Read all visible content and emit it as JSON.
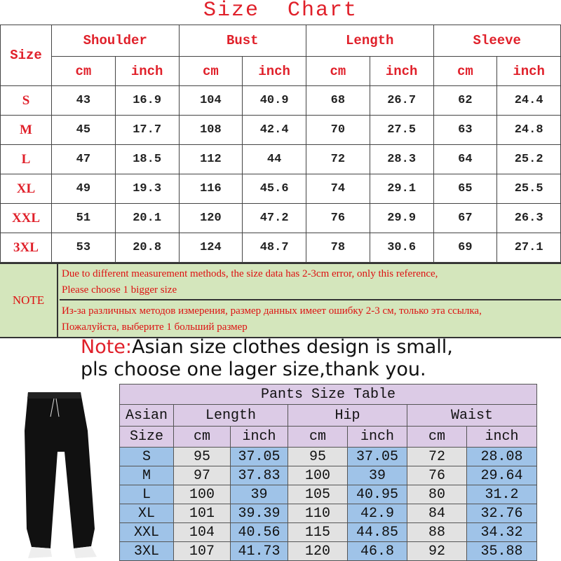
{
  "title": "Size  Chart",
  "top_table": {
    "size_label": "Size",
    "groups": [
      "Shoulder",
      "Bust",
      "Length",
      "Sleeve"
    ],
    "units": [
      "cm",
      "inch",
      "cm",
      "inch",
      "cm",
      "inch",
      "cm",
      "inch"
    ],
    "rows": [
      [
        "S",
        "43",
        "16.9",
        "104",
        "40.9",
        "68",
        "26.7",
        "62",
        "24.4"
      ],
      [
        "M",
        "45",
        "17.7",
        "108",
        "42.4",
        "70",
        "27.5",
        "63",
        "24.8"
      ],
      [
        "L",
        "47",
        "18.5",
        "112",
        "44",
        "72",
        "28.3",
        "64",
        "25.2"
      ],
      [
        "XL",
        "49",
        "19.3",
        "116",
        "45.6",
        "74",
        "29.1",
        "65",
        "25.5"
      ],
      [
        "XXL",
        "51",
        "20.1",
        "120",
        "47.2",
        "76",
        "29.9",
        "67",
        "26.3"
      ],
      [
        "3XL",
        "53",
        "20.8",
        "124",
        "48.7",
        "78",
        "30.6",
        "69",
        "27.1"
      ]
    ]
  },
  "note": {
    "label": "NOTE",
    "en": [
      "Due to different measurement methods, the size data has 2-3cm error, only this reference,",
      "Please choose 1 bigger size"
    ],
    "ru": [
      "Из-за различных методов измерения, размер данных имеет ошибку 2-3 см, только эта ссылка,",
      "Пожалуйста, выберите 1 больший размер"
    ]
  },
  "banner": {
    "prefix": "Note:",
    "line1": "Asian size clothes design is small,",
    "line2": "pls choose one lager size,thank you."
  },
  "pants_table": {
    "title": "Pants Size Table",
    "size_label": [
      "Asian",
      "Size"
    ],
    "groups": [
      "Length",
      "Hip",
      "Waist"
    ],
    "units": [
      "cm",
      "inch",
      "cm",
      "inch",
      "cm",
      "inch"
    ],
    "rows": [
      [
        "S",
        "95",
        "37.05",
        "95",
        "37.05",
        "72",
        "28.08"
      ],
      [
        "M",
        "97",
        "37.83",
        "100",
        "39",
        "76",
        "29.64"
      ],
      [
        "L",
        "100",
        "39",
        "105",
        "40.95",
        "80",
        "31.2"
      ],
      [
        "XL",
        "101",
        "39.39",
        "110",
        "42.9",
        "84",
        "32.76"
      ],
      [
        "XXL",
        "104",
        "40.56",
        "115",
        "44.85",
        "88",
        "34.32"
      ],
      [
        "3XL",
        "107",
        "41.73",
        "120",
        "46.8",
        "92",
        "35.88"
      ]
    ]
  },
  "colors": {
    "red": "#e0202a",
    "note_bg": "#d4e6bc",
    "header_purple": "#dccbe6",
    "cell_blue": "#9fc3e8",
    "cell_gray": "#e2e2e2"
  }
}
